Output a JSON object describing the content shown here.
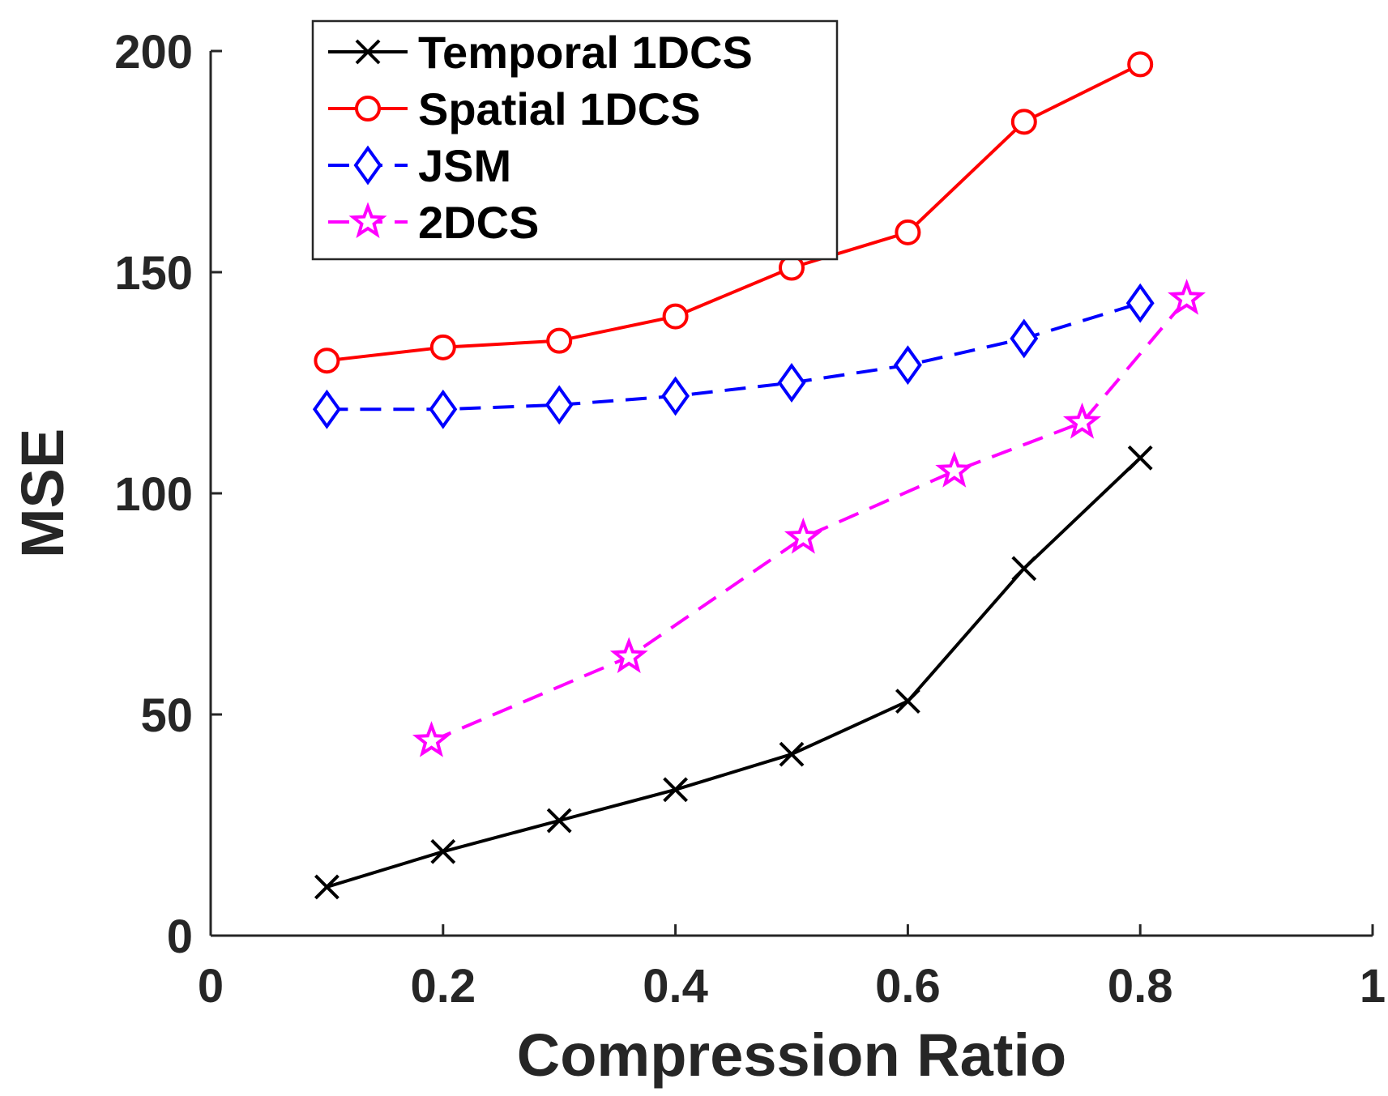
{
  "chart_data": {
    "type": "line",
    "title": "",
    "xlabel": "Compression Ratio",
    "ylabel": "MSE",
    "xlim": [
      0,
      1
    ],
    "ylim": [
      0,
      200
    ],
    "xticks": [
      0,
      0.2,
      0.4,
      0.6,
      0.8,
      1
    ],
    "xtick_labels": [
      "0",
      "0.2",
      "0.4",
      "0.6",
      "0.8",
      "1"
    ],
    "yticks": [
      0,
      50,
      100,
      150,
      200
    ],
    "ytick_labels": [
      "0",
      "50",
      "100",
      "150",
      "200"
    ],
    "grid": false,
    "legend_position": "top-left",
    "series": [
      {
        "name": "Temporal 1DCS",
        "color": "#000000",
        "line_style": "solid",
        "marker": "x",
        "x": [
          0.1,
          0.2,
          0.3,
          0.4,
          0.5,
          0.6,
          0.7,
          0.8
        ],
        "y": [
          11,
          19,
          26,
          33,
          41,
          53,
          83,
          108
        ]
      },
      {
        "name": "Spatial 1DCS",
        "color": "#ff0000",
        "line_style": "solid",
        "marker": "circle",
        "x": [
          0.1,
          0.2,
          0.3,
          0.4,
          0.5,
          0.6,
          0.7,
          0.8
        ],
        "y": [
          130,
          133,
          134.5,
          140,
          151,
          159,
          184,
          197
        ]
      },
      {
        "name": "JSM",
        "color": "#0000ff",
        "line_style": "dashed",
        "marker": "diamond",
        "x": [
          0.1,
          0.2,
          0.3,
          0.4,
          0.5,
          0.6,
          0.7,
          0.8
        ],
        "y": [
          119,
          119,
          120,
          122,
          125,
          129,
          135,
          143
        ]
      },
      {
        "name": "2DCS",
        "color": "#ff00ff",
        "line_style": "dashed",
        "marker": "star",
        "x": [
          0.19,
          0.36,
          0.51,
          0.64,
          0.75,
          0.84
        ],
        "y": [
          44,
          63,
          90,
          105,
          116,
          144
        ]
      }
    ]
  }
}
